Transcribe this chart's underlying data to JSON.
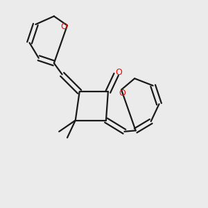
{
  "bg_color": "#ebebeb",
  "line_color": "#1a1a1a",
  "o_color": "#ff0000",
  "line_width": 1.6,
  "fig_size": [
    3.0,
    3.0
  ],
  "dpi": 100,
  "xlim": [
    0.0,
    1.0
  ],
  "ylim": [
    0.0,
    1.0
  ]
}
